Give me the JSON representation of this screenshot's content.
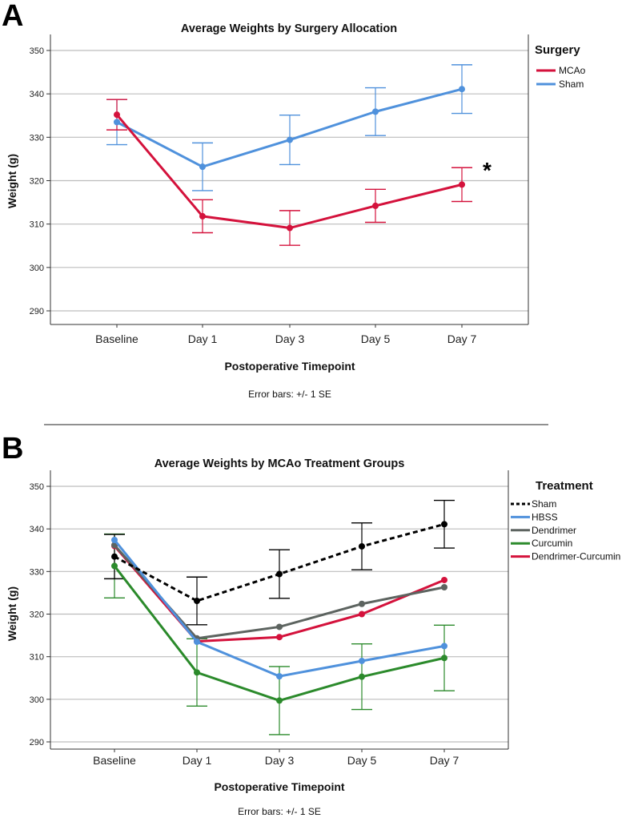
{
  "panels": [
    {
      "letter": "A",
      "note": "Error bars: +/- 1 SE",
      "annotation": "*",
      "chart_data": {
        "type": "line",
        "title": "Average Weights by Surgery Allocation",
        "xlabel": "Postoperative Timepoint",
        "ylabel": "Weight (g)",
        "ylim": [
          286,
          354
        ],
        "yticks": [
          290,
          300,
          310,
          320,
          330,
          340,
          350
        ],
        "categories": [
          "Baseline",
          "Day 1",
          "Day 3",
          "Day 5",
          "Day 7"
        ],
        "legend_title": "Surgery",
        "legend_position": "top-right",
        "grid": true,
        "series": [
          {
            "name": "MCAo",
            "color": "#d4123c",
            "dash": false,
            "values": [
              335.2,
              311.8,
              309.1,
              314.2,
              319.1
            ],
            "error": [
              3.5,
              3.8,
              4.0,
              3.8,
              3.9
            ]
          },
          {
            "name": "Sham",
            "color": "#4f91dc",
            "dash": false,
            "values": [
              333.5,
              323.2,
              329.4,
              335.9,
              341.1
            ],
            "error": [
              5.2,
              5.5,
              5.7,
              5.5,
              5.6
            ]
          }
        ]
      }
    },
    {
      "letter": "B",
      "note": "Error bars: +/- 1 SE",
      "annotation": "",
      "chart_data": {
        "type": "line",
        "title": "Average Weights by MCAo Treatment Groups",
        "xlabel": "Postoperative Timepoint",
        "ylabel": "Weight (g)",
        "ylim": [
          286,
          354
        ],
        "yticks": [
          290,
          300,
          310,
          320,
          330,
          340,
          350
        ],
        "categories": [
          "Baseline",
          "Day 1",
          "Day 3",
          "Day 5",
          "Day 7"
        ],
        "legend_title": "Treatment",
        "legend_position": "top-right",
        "grid": true,
        "series": [
          {
            "name": "Sham",
            "color": "#000000",
            "dash": true,
            "values": [
              333.5,
              323.1,
              329.4,
              335.9,
              341.1
            ],
            "error": [
              5.2,
              5.6,
              5.7,
              5.5,
              5.6
            ]
          },
          {
            "name": "HBSS",
            "color": "#4f91dc",
            "dash": false,
            "values": [
              337.4,
              313.5,
              305.4,
              309.0,
              312.5
            ],
            "error": null
          },
          {
            "name": "Dendrimer",
            "color": "#5d6460",
            "dash": false,
            "values": [
              336.2,
              314.3,
              317.0,
              322.4,
              326.3
            ],
            "error": null
          },
          {
            "name": "Curcumin",
            "color": "#2b8a2b",
            "dash": false,
            "values": [
              331.3,
              306.3,
              299.7,
              305.3,
              309.7
            ],
            "error": [
              7.5,
              7.9,
              8.0,
              7.7,
              7.7
            ]
          },
          {
            "name": "Dendrimer-Curcumin",
            "color": "#d4123c",
            "dash": false,
            "values": [
              336.0,
              313.6,
              314.6,
              320.0,
              328.0
            ],
            "error": null
          }
        ]
      }
    }
  ]
}
